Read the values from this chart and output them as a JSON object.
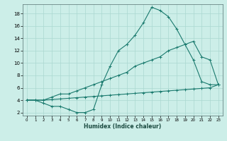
{
  "xlabel": "Humidex (Indice chaleur)",
  "bg_color": "#cceee8",
  "grid_color": "#aad8d0",
  "line_color": "#1a7a6e",
  "xlim": [
    -0.5,
    23.5
  ],
  "ylim": [
    1.5,
    19.5
  ],
  "xticks": [
    0,
    1,
    2,
    3,
    4,
    5,
    6,
    7,
    8,
    9,
    10,
    11,
    12,
    13,
    14,
    15,
    16,
    17,
    18,
    19,
    20,
    21,
    22,
    23
  ],
  "yticks": [
    2,
    4,
    6,
    8,
    10,
    12,
    14,
    16,
    18
  ],
  "line1_x": [
    0,
    1,
    2,
    3,
    4,
    5,
    6,
    7,
    8,
    9,
    10,
    11,
    12,
    13,
    14,
    15,
    16,
    17,
    18,
    19,
    20,
    21,
    22,
    23
  ],
  "line1_y": [
    4.0,
    4.0,
    3.5,
    3.0,
    3.0,
    2.5,
    2.0,
    2.0,
    2.5,
    6.5,
    9.5,
    12.0,
    13.0,
    14.5,
    16.5,
    19.0,
    18.5,
    17.5,
    15.5,
    13.0,
    10.5,
    7.0,
    6.5,
    6.5
  ],
  "line2_x": [
    0,
    1,
    2,
    3,
    4,
    5,
    6,
    7,
    8,
    9,
    10,
    11,
    12,
    13,
    14,
    15,
    16,
    17,
    18,
    19,
    20,
    21,
    22,
    23
  ],
  "line2_y": [
    4.0,
    4.0,
    4.0,
    4.5,
    5.0,
    5.0,
    5.5,
    6.0,
    6.5,
    7.0,
    7.5,
    8.0,
    8.5,
    9.5,
    10.0,
    10.5,
    11.0,
    12.0,
    12.5,
    13.0,
    13.5,
    11.0,
    10.5,
    6.5
  ],
  "line3_x": [
    0,
    1,
    2,
    3,
    4,
    5,
    6,
    7,
    8,
    9,
    10,
    11,
    12,
    13,
    14,
    15,
    16,
    17,
    18,
    19,
    20,
    21,
    22,
    23
  ],
  "line3_y": [
    4.0,
    4.0,
    4.0,
    4.1,
    4.2,
    4.3,
    4.4,
    4.5,
    4.6,
    4.7,
    4.8,
    4.9,
    5.0,
    5.1,
    5.2,
    5.3,
    5.4,
    5.5,
    5.6,
    5.7,
    5.8,
    5.9,
    6.0,
    6.5
  ]
}
